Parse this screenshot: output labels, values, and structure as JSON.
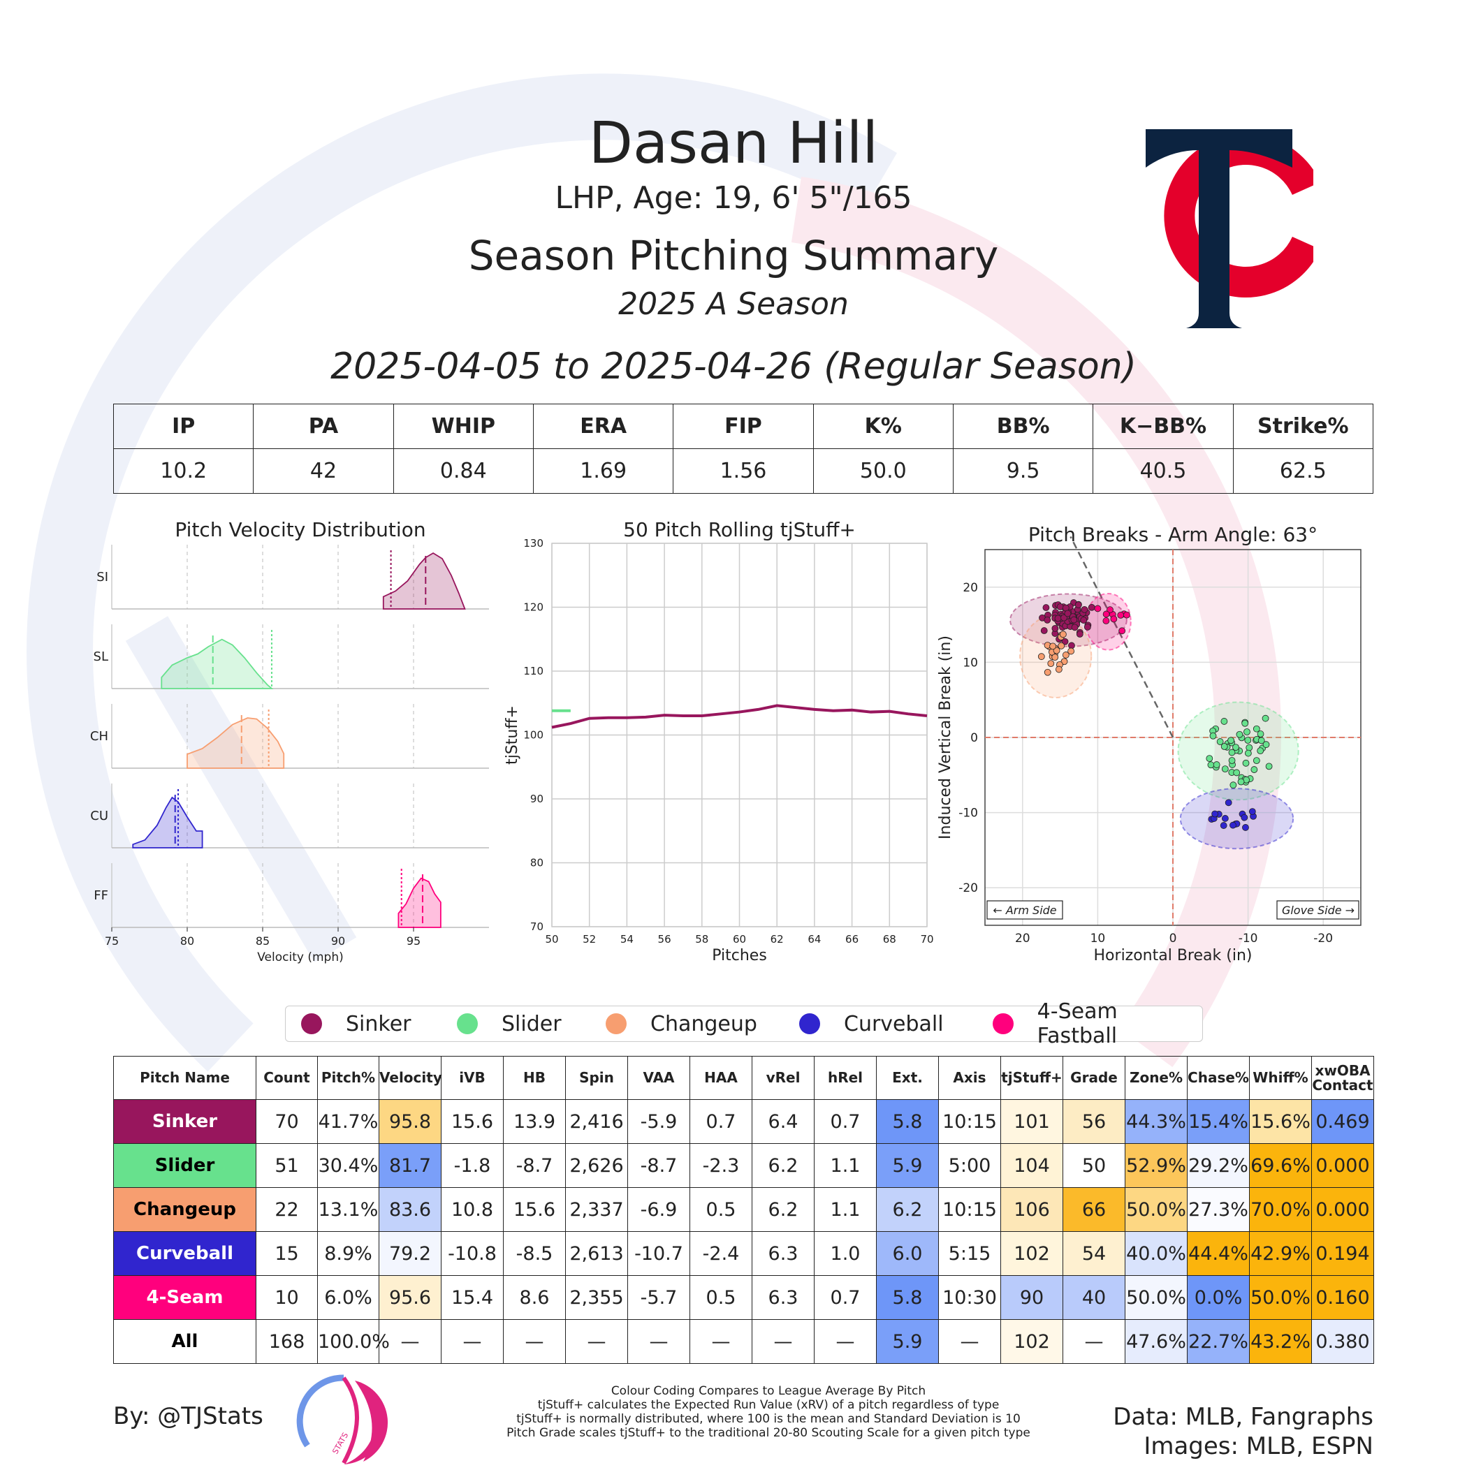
{
  "header": {
    "player_name": "Dasan Hill",
    "player_info": "LHP, Age: 19, 6' 5\"/165",
    "summary_title": "Season Pitching Summary",
    "season_label": "2025 A Season",
    "date_range": "2025-04-05 to 2025-04-26 (Regular Season)"
  },
  "team_logo": {
    "letters": "TC",
    "navy": "#0C2340",
    "red": "#E4002B"
  },
  "season_stats": {
    "headers": [
      "IP",
      "PA",
      "WHIP",
      "ERA",
      "FIP",
      "K%",
      "BB%",
      "K−BB%",
      "Strike%"
    ],
    "values": [
      "10.2",
      "42",
      "0.84",
      "1.69",
      "1.56",
      "50.0",
      "9.5",
      "40.5",
      "62.5"
    ]
  },
  "pitch_colors": {
    "SI": "#98165D",
    "SL": "#67E18D",
    "CH": "#F79E70",
    "CU": "#3025CE",
    "FF": "#FF007D"
  },
  "legend": [
    "Sinker",
    "Slider",
    "Changeup",
    "Curveball",
    "4-Seam Fastball"
  ],
  "chart_data": [
    {
      "type": "area",
      "title": "Pitch Velocity Distribution",
      "xlabel": "Velocity (mph)",
      "xlim": [
        75,
        100
      ],
      "xticks": [
        75,
        80,
        85,
        90,
        95
      ],
      "rows": [
        {
          "label": "SI",
          "color": "#98165D",
          "range": [
            93,
            98.4
          ],
          "mean": 95.8,
          "league": 93.5,
          "density": [
            [
              93,
              0
            ],
            [
              93,
              0.22
            ],
            [
              93.8,
              0.32
            ],
            [
              94.6,
              0.5
            ],
            [
              95.4,
              0.8
            ],
            [
              95.8,
              0.92
            ],
            [
              96.3,
              1.0
            ],
            [
              96.9,
              0.9
            ],
            [
              97.5,
              0.6
            ],
            [
              98,
              0.28
            ],
            [
              98.4,
              0
            ]
          ]
        },
        {
          "label": "SL",
          "color": "#67E18D",
          "range": [
            78.3,
            85.6
          ],
          "mean": 81.7,
          "league": 85.6,
          "density": [
            [
              78.3,
              0
            ],
            [
              78.3,
              0.2
            ],
            [
              79,
              0.42
            ],
            [
              80,
              0.55
            ],
            [
              80.7,
              0.62
            ],
            [
              81.4,
              0.75
            ],
            [
              82.3,
              0.88
            ],
            [
              83,
              0.78
            ],
            [
              83.8,
              0.55
            ],
            [
              84.6,
              0.28
            ],
            [
              85.3,
              0.07
            ],
            [
              85.6,
              0
            ]
          ]
        },
        {
          "label": "CH",
          "color": "#F79E70",
          "range": [
            80,
            86.4
          ],
          "mean": 83.6,
          "league": 85.4,
          "density": [
            [
              80,
              0
            ],
            [
              80,
              0.25
            ],
            [
              81,
              0.35
            ],
            [
              82,
              0.55
            ],
            [
              83,
              0.78
            ],
            [
              84,
              0.9
            ],
            [
              84.6,
              0.88
            ],
            [
              85.3,
              0.72
            ],
            [
              86,
              0.48
            ],
            [
              86.4,
              0.26
            ],
            [
              86.4,
              0
            ]
          ]
        },
        {
          "label": "CU",
          "color": "#3025CE",
          "range": [
            76.4,
            81
          ],
          "mean": 79.2,
          "league": 79.4,
          "density": [
            [
              76.4,
              0
            ],
            [
              76.4,
              0.06
            ],
            [
              77.2,
              0.14
            ],
            [
              78,
              0.4
            ],
            [
              78.6,
              0.72
            ],
            [
              79,
              0.9
            ],
            [
              79.4,
              0.82
            ],
            [
              80,
              0.55
            ],
            [
              80.6,
              0.3
            ],
            [
              81,
              0.3
            ],
            [
              81,
              0
            ]
          ]
        },
        {
          "label": "FF",
          "color": "#FF007D",
          "range": [
            94,
            96.8
          ],
          "mean": 95.6,
          "league": 94.2,
          "density": [
            [
              94,
              0
            ],
            [
              94,
              0.25
            ],
            [
              94.5,
              0.42
            ],
            [
              95,
              0.7
            ],
            [
              95.5,
              0.88
            ],
            [
              96,
              0.82
            ],
            [
              96.4,
              0.6
            ],
            [
              96.8,
              0.45
            ],
            [
              96.8,
              0
            ]
          ]
        }
      ]
    },
    {
      "type": "line",
      "title": "50 Pitch Rolling tjStuff+",
      "xlabel": "Pitches",
      "ylabel": "tjStuff+",
      "xlim": [
        50,
        70
      ],
      "ylim": [
        70,
        130
      ],
      "xticks": [
        50,
        52,
        54,
        56,
        58,
        60,
        62,
        64,
        66,
        68,
        70
      ],
      "yticks": [
        70,
        80,
        90,
        100,
        110,
        120,
        130
      ],
      "series": [
        {
          "key": "SI",
          "color": "#98165D",
          "x": [
            50,
            51,
            52,
            53,
            54,
            55,
            56,
            57,
            58,
            59,
            60,
            61,
            62,
            63,
            64,
            65,
            66,
            67,
            68,
            69,
            70
          ],
          "y": [
            101.2,
            101.8,
            102.6,
            102.7,
            102.7,
            102.8,
            103.1,
            103.0,
            103.0,
            103.3,
            103.6,
            104.0,
            104.6,
            104.3,
            104.0,
            103.8,
            103.9,
            103.6,
            103.7,
            103.3,
            103.0
          ]
        },
        {
          "key": "SL",
          "color": "#67E18D",
          "x": [
            50,
            51
          ],
          "y": [
            103.8,
            103.8
          ]
        }
      ]
    },
    {
      "type": "scatter",
      "title": "Pitch Breaks - Arm Angle: 63°",
      "xlabel": "Horizontal Break (in)",
      "ylabel": "Induced Vertical Break (in)",
      "xlim": [
        25,
        -25
      ],
      "ylim": [
        -25,
        25
      ],
      "xticks": [
        20,
        10,
        0,
        -10,
        -20
      ],
      "yticks": [
        20,
        10,
        0,
        -10,
        -20
      ],
      "x_tick_labels": [
        "20",
        "10",
        "0",
        "-10",
        "-20"
      ],
      "y_tick_labels": [
        "20",
        "10",
        "0",
        "-10",
        "-20"
      ],
      "arm_angle": 63,
      "corner_labels": {
        "left": "← Arm Side",
        "right": "Glove Side →"
      },
      "series": [
        {
          "key": "SI",
          "color": "#98165D",
          "n": 70,
          "center": [
            13.9,
            15.6
          ],
          "sd": [
            2.2,
            2.1
          ],
          "ellipse": [
            15.5,
            7
          ]
        },
        {
          "key": "SL",
          "color": "#67E18D",
          "n": 51,
          "center": [
            -8.7,
            -1.8
          ],
          "sd": [
            3.6,
            3.4
          ],
          "ellipse": [
            16,
            13
          ]
        },
        {
          "key": "CH",
          "color": "#F79E70",
          "n": 22,
          "center": [
            15.6,
            10.8
          ],
          "sd": [
            1.8,
            2.4
          ],
          "ellipse": [
            9.5,
            11
          ]
        },
        {
          "key": "CU",
          "color": "#3025CE",
          "n": 15,
          "center": [
            -8.5,
            -10.8
          ],
          "sd": [
            3.6,
            1.8
          ],
          "ellipse": [
            15,
            8
          ]
        },
        {
          "key": "FF",
          "color": "#FF007D",
          "n": 10,
          "center": [
            8.6,
            15.4
          ],
          "sd": [
            2.0,
            2.2
          ],
          "ellipse": [
            6,
            7.5
          ]
        }
      ]
    }
  ],
  "pitch_table": {
    "headers": [
      "Pitch Name",
      "Count",
      "Pitch%",
      "Velocity",
      "iVB",
      "HB",
      "Spin",
      "VAA",
      "HAA",
      "vRel",
      "hRel",
      "Ext.",
      "Axis",
      "tjStuff+",
      "Grade",
      "Zone%",
      "Chase%",
      "Whiff%",
      "xwOBA Contact"
    ],
    "rows": [
      {
        "name": "Sinker",
        "name_bg": "#98165D",
        "name_color": "#ffffff",
        "cells": [
          "70",
          "41.7%",
          "95.8",
          "15.6",
          "13.9",
          "2,416",
          "-5.9",
          "0.7",
          "6.4",
          "0.7",
          "5.8",
          "10:15",
          "101",
          "56",
          "44.3%",
          "15.4%",
          "15.6%",
          "0.469"
        ],
        "bgs": [
          "#fff",
          "#fff",
          "#FDD783",
          "#fff",
          "#fff",
          "#fff",
          "#fff",
          "#fff",
          "#fff",
          "#fff",
          "#6E96F8",
          "#fff",
          "#FFF6E0",
          "#FDECC4",
          "#95B2FA",
          "#7A9FF9",
          "#FDE4A6",
          "#6E96F8"
        ]
      },
      {
        "name": "Slider",
        "name_bg": "#67E18D",
        "name_color": "#000000",
        "cells": [
          "51",
          "30.4%",
          "81.7",
          "-1.8",
          "-8.7",
          "2,626",
          "-8.7",
          "-2.3",
          "6.2",
          "1.1",
          "5.9",
          "5:00",
          "104",
          "50",
          "52.9%",
          "29.2%",
          "69.6%",
          "0.000"
        ],
        "bgs": [
          "#fff",
          "#fff",
          "#7A9FF9",
          "#fff",
          "#fff",
          "#fff",
          "#fff",
          "#fff",
          "#fff",
          "#fff",
          "#7A9FF9",
          "#fff",
          "#FFF3D6",
          "#fff",
          "#FCC65A",
          "#F3F6FE",
          "#FBB40C",
          "#FBB40C"
        ]
      },
      {
        "name": "Changeup",
        "name_bg": "#F79E70",
        "name_color": "#000000",
        "cells": [
          "22",
          "13.1%",
          "83.6",
          "10.8",
          "15.6",
          "2,337",
          "-6.9",
          "0.5",
          "6.2",
          "1.1",
          "6.2",
          "10:15",
          "106",
          "66",
          "50.0%",
          "27.3%",
          "70.0%",
          "0.000"
        ],
        "bgs": [
          "#fff",
          "#fff",
          "#C2D2FB",
          "#fff",
          "#fff",
          "#fff",
          "#fff",
          "#fff",
          "#fff",
          "#fff",
          "#C2D2FB",
          "#fff",
          "#FDE7B7",
          "#FBBA2A",
          "#FDD783",
          "#FAFBFF",
          "#FBB40C",
          "#FBB40C"
        ]
      },
      {
        "name": "Curveball",
        "name_bg": "#3025CE",
        "name_color": "#ffffff",
        "cells": [
          "15",
          "8.9%",
          "79.2",
          "-10.8",
          "-8.5",
          "2,613",
          "-10.7",
          "-2.4",
          "6.3",
          "1.0",
          "6.0",
          "5:15",
          "102",
          "54",
          "40.0%",
          "44.4%",
          "42.9%",
          "0.194"
        ],
        "bgs": [
          "#fff",
          "#fff",
          "#F3F6FE",
          "#fff",
          "#fff",
          "#fff",
          "#fff",
          "#fff",
          "#fff",
          "#fff",
          "#9EB8FA",
          "#fff",
          "#FFF5DC",
          "#FEF0D0",
          "#D9E3FC",
          "#FBB40C",
          "#FBB40C",
          "#FBB40C"
        ]
      },
      {
        "name": "4-Seam",
        "name_bg": "#FF007D",
        "name_color": "#ffffff",
        "cells": [
          "10",
          "6.0%",
          "95.6",
          "15.4",
          "8.6",
          "2,355",
          "-5.7",
          "0.5",
          "6.3",
          "0.7",
          "5.8",
          "10:30",
          "90",
          "40",
          "50.0%",
          "0.0%",
          "50.0%",
          "0.160"
        ],
        "bgs": [
          "#fff",
          "#fff",
          "#FEF0D0",
          "#fff",
          "#fff",
          "#fff",
          "#fff",
          "#fff",
          "#fff",
          "#fff",
          "#6E96F8",
          "#fff",
          "#B9CBFB",
          "#B9CBFB",
          "#F3F6FE",
          "#6E96F8",
          "#FBB40C",
          "#FBB40C"
        ]
      },
      {
        "name": "All",
        "name_bg": "#ffffff",
        "name_color": "#000000",
        "cells": [
          "168",
          "100.0%",
          "—",
          "—",
          "—",
          "—",
          "—",
          "—",
          "—",
          "—",
          "5.9",
          "—",
          "102",
          "—",
          "47.6%",
          "22.7%",
          "43.2%",
          "0.380"
        ],
        "bgs": [
          "#fff",
          "#fff",
          "#fff",
          "#fff",
          "#fff",
          "#fff",
          "#fff",
          "#fff",
          "#fff",
          "#fff",
          "#7A9FF9",
          "#fff",
          "#FFF8E8",
          "#fff",
          "#E6ECFD",
          "#95B2FA",
          "#FBB40C",
          "#E6ECFD"
        ]
      }
    ]
  },
  "footer": {
    "byline": "By: @TJStats",
    "brand_mark": "STATS",
    "notes": [
      "Colour Coding Compares to League Average By Pitch",
      "tjStuff+ calculates the Expected Run Value (xRV) of a pitch regardless of type",
      "tjStuff+ is normally distributed, where 100 is the mean and Standard Deviation is 10",
      "Pitch Grade scales tjStuff+ to the traditional 20-80 Scouting Scale for a given pitch type"
    ],
    "credits": [
      "Data: MLB, Fangraphs",
      "Images: MLB, ESPN"
    ]
  }
}
